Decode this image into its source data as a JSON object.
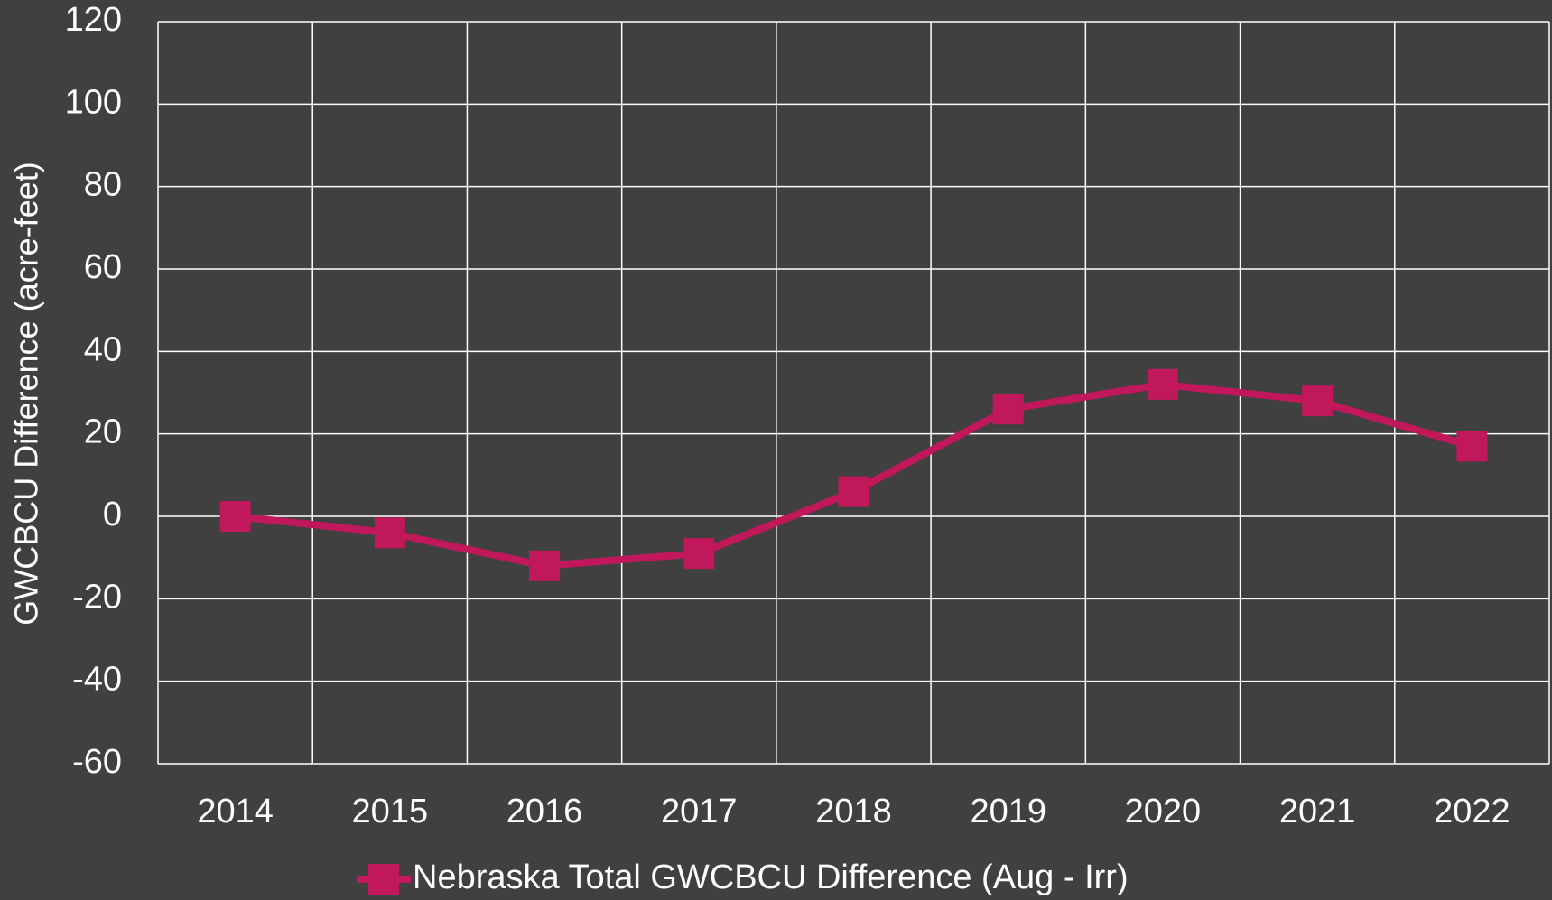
{
  "chart_data": {
    "type": "line",
    "y_label": "GWCBCU Difference (acre-feet)",
    "categories": [
      "2014",
      "2015",
      "2016",
      "2017",
      "2018",
      "2019",
      "2020",
      "2021",
      "2022"
    ],
    "series": [
      {
        "name": "Nebraska Total GWCBCU Difference (Aug - Irr)",
        "color": "#c0185a",
        "values": [
          0,
          -4,
          -12,
          -9,
          6,
          26,
          32,
          28,
          17
        ]
      }
    ],
    "ylim": [
      -60,
      120
    ],
    "yticks": [
      -60,
      -40,
      -20,
      0,
      20,
      40,
      60,
      80,
      100,
      120
    ],
    "grid": true,
    "legend": "bottom"
  }
}
